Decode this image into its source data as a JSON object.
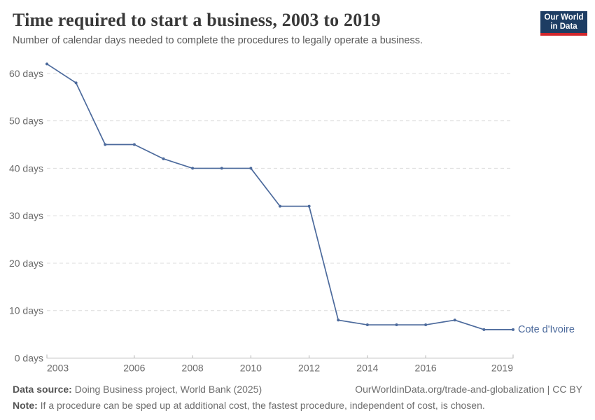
{
  "header": {
    "title": "Time required to start a business, 2003 to 2019",
    "subtitle": "Number of calendar days needed to complete the procedures to legally operate a business.",
    "logo": {
      "line1": "Our World",
      "line2": "in Data",
      "bg_color": "#1d3d63",
      "accent_color": "#d1272c"
    }
  },
  "chart_data": {
    "type": "line",
    "title": "Time required to start a business, 2003 to 2019",
    "xlabel": "",
    "ylabel": "days",
    "x": [
      2003,
      2004,
      2005,
      2006,
      2007,
      2008,
      2009,
      2010,
      2011,
      2012,
      2013,
      2014,
      2015,
      2016,
      2017,
      2018,
      2019
    ],
    "series": [
      {
        "name": "Cote d'Ivoire",
        "color": "#4c6a9c",
        "values": [
          62,
          58,
          45,
          45,
          42,
          40,
          40,
          40,
          32,
          32,
          8,
          7,
          7,
          7,
          8,
          6,
          6
        ]
      }
    ],
    "ylim": [
      0,
      65
    ],
    "yticks": [
      0,
      10,
      20,
      30,
      40,
      50,
      60
    ],
    "ytick_labels": [
      "0 days",
      "10 days",
      "20 days",
      "30 days",
      "40 days",
      "50 days",
      "60 days"
    ],
    "xticks": [
      2003,
      2006,
      2008,
      2010,
      2012,
      2014,
      2016,
      2019
    ],
    "xtick_labels": [
      "2003",
      "2006",
      "2008",
      "2010",
      "2012",
      "2014",
      "2016",
      "2019"
    ],
    "grid": "horizontal-dashed",
    "legend_position": "end-of-line",
    "tick_color": "#6b6b6b",
    "grid_color": "#dcdcdc",
    "axis_color": "#b3b3b3"
  },
  "footer": {
    "data_source_label": "Data source:",
    "data_source_text": " Doing Business project, World Bank (2025)",
    "link": "OurWorldinData.org/trade-and-globalization | CC BY",
    "note_label": "Note:",
    "note_text": " If a procedure can be sped up at additional cost, the fastest procedure, independent of cost, is chosen."
  }
}
